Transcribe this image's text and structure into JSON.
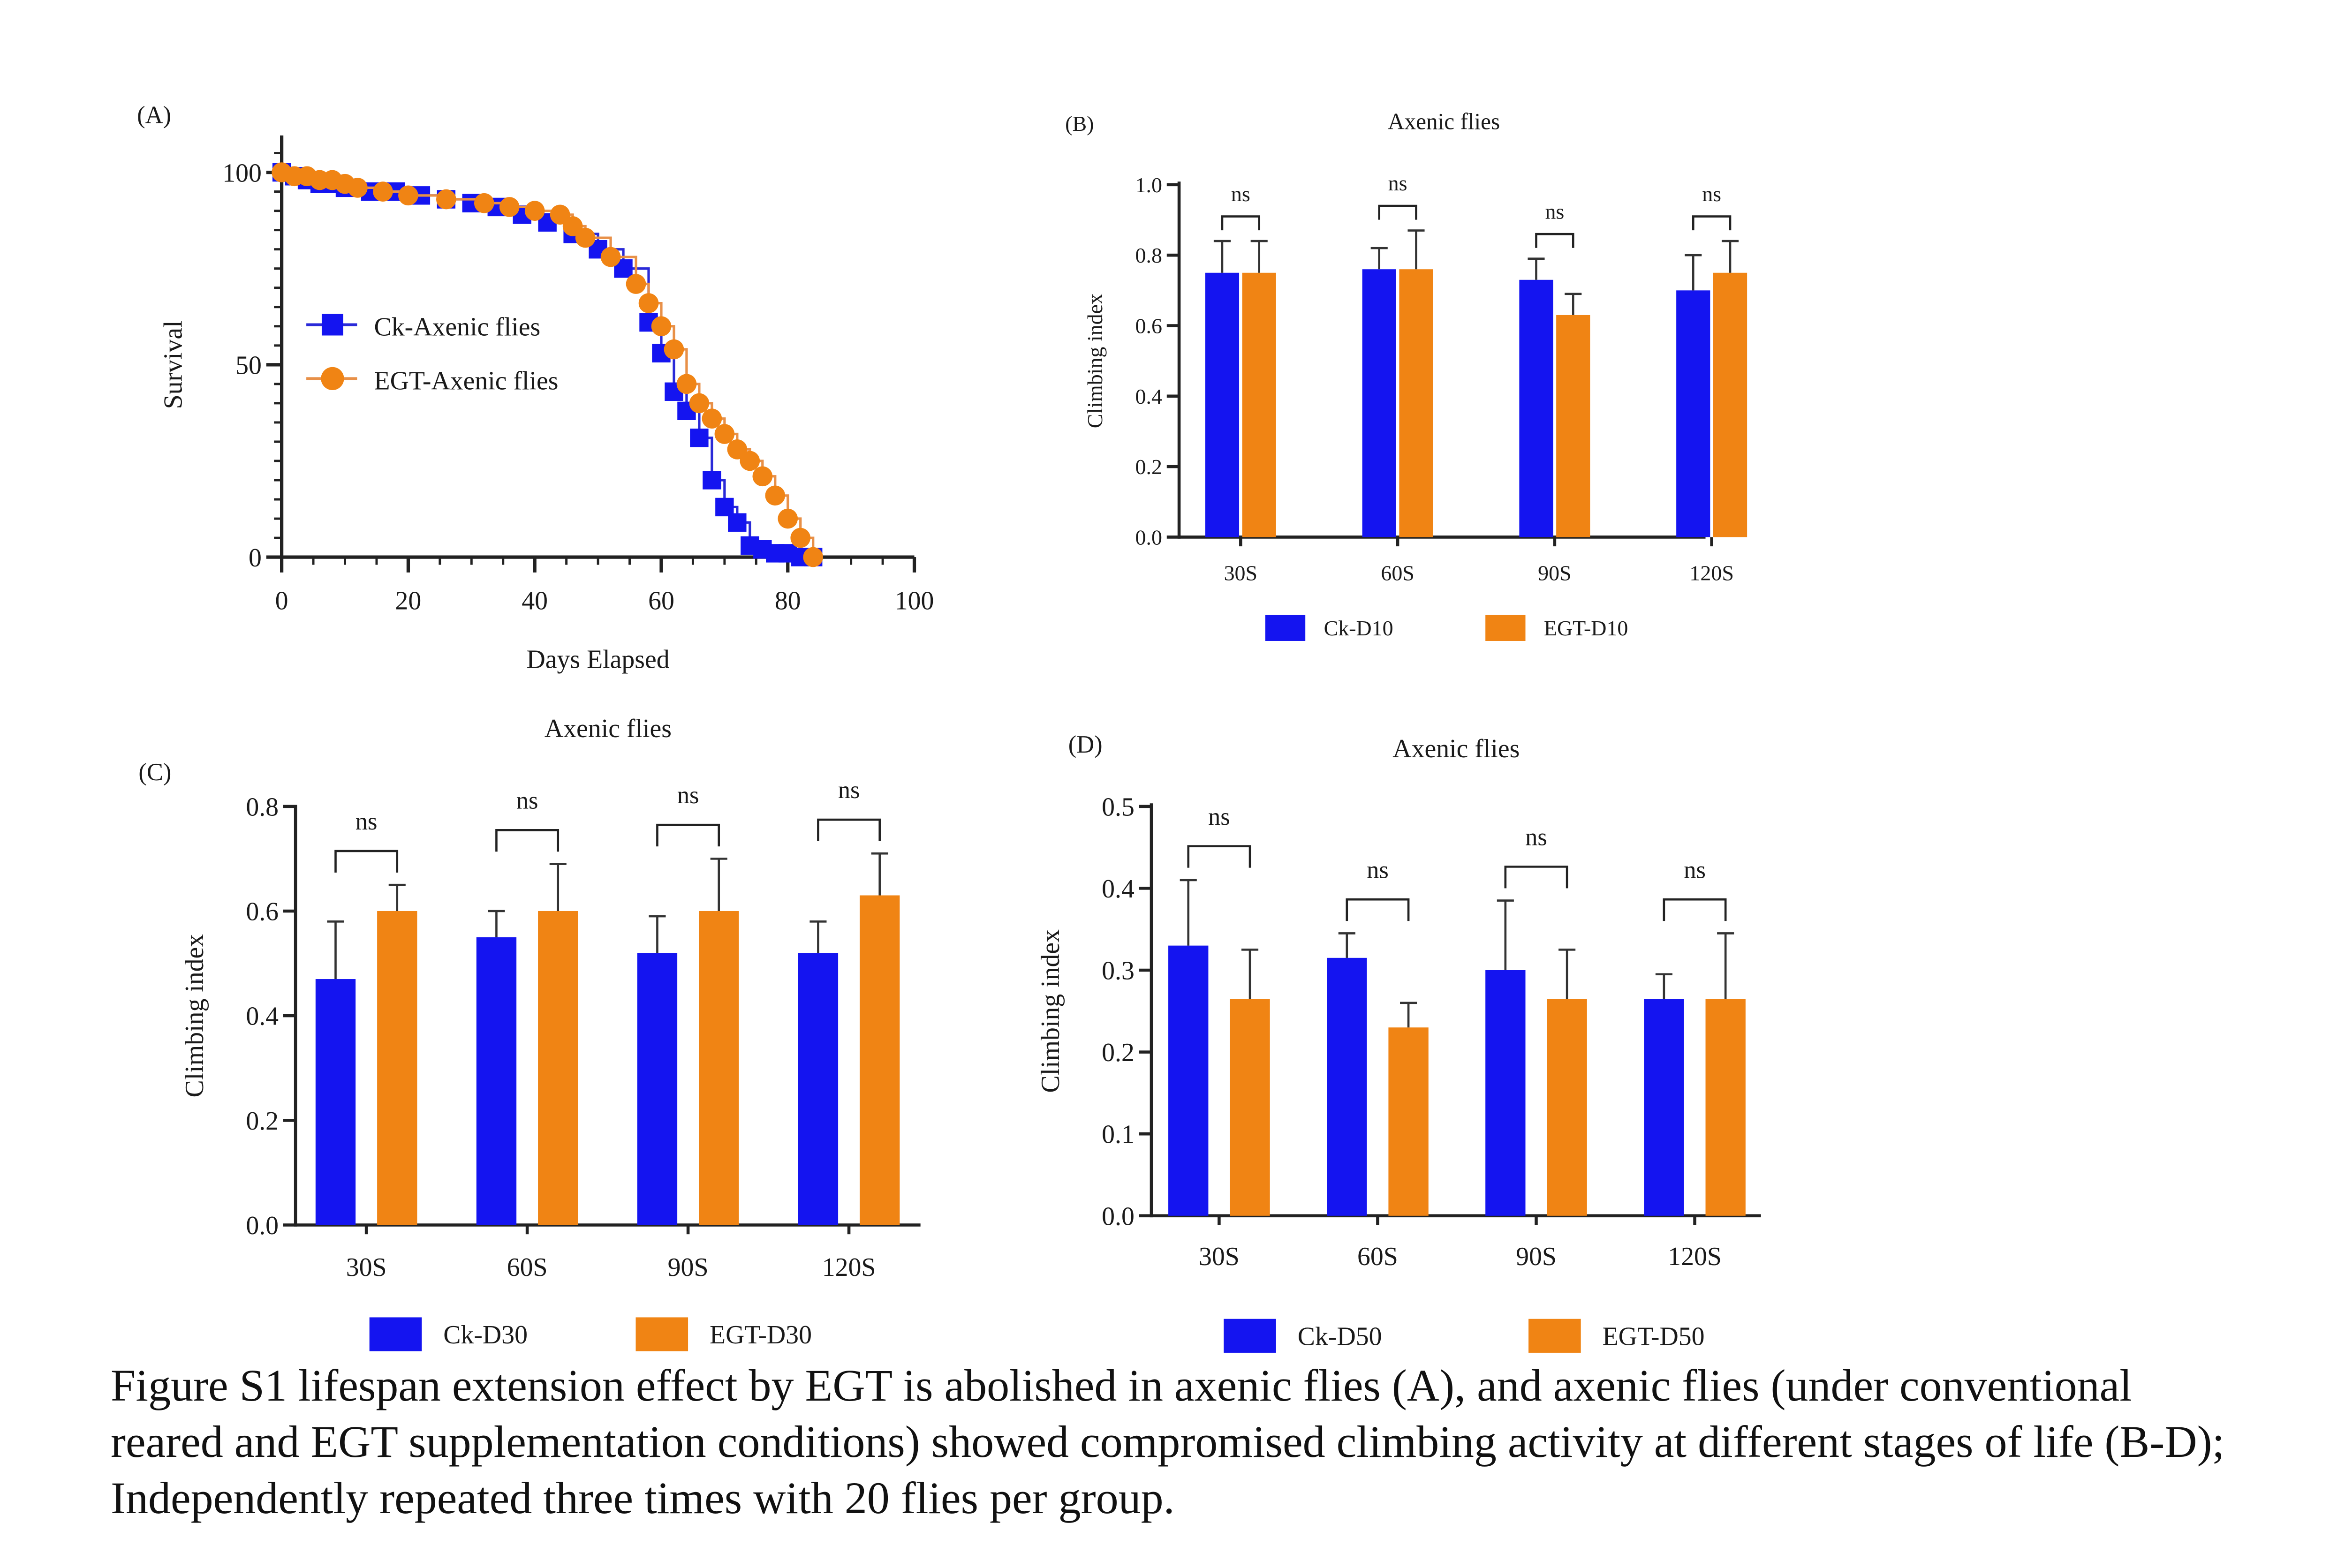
{
  "colors": {
    "ck": "#1414f0",
    "egt": "#f08414",
    "ck_line": "#2a2ad8",
    "egt_line": "#e89048"
  },
  "panels": {
    "A": {
      "label": "(A)",
      "chart_data": {
        "type": "line",
        "title": "",
        "xlabel": "Days Elapsed",
        "ylabel": "Survival",
        "xlim": [
          0,
          100
        ],
        "ylim": [
          0,
          100
        ],
        "xticks": [
          0,
          20,
          40,
          60,
          80,
          100
        ],
        "yticks": [
          0,
          50,
          100
        ],
        "legend_position": "left-middle",
        "series": [
          {
            "name": "Ck-Axenic flies",
            "x": [
              0,
              2,
              4,
              6,
              8,
              10,
              14,
              18,
              22,
              26,
              30,
              34,
              38,
              42,
              46,
              50,
              54,
              58,
              60,
              62,
              64,
              66,
              68,
              70,
              72,
              74,
              76,
              78,
              80,
              82,
              84
            ],
            "y": [
              100,
              99,
              98,
              97,
              97,
              96,
              95,
              95,
              94,
              93,
              92,
              91,
              89,
              87,
              84,
              80,
              75,
              61,
              53,
              43,
              38,
              31,
              20,
              13,
              9,
              3,
              2,
              1,
              1,
              0,
              0
            ]
          },
          {
            "name": "EGT-Axenic flies",
            "x": [
              0,
              2,
              4,
              6,
              8,
              10,
              12,
              16,
              20,
              26,
              32,
              36,
              40,
              44,
              46,
              48,
              52,
              56,
              58,
              60,
              62,
              64,
              66,
              68,
              70,
              72,
              74,
              76,
              78,
              80,
              82,
              84
            ],
            "y": [
              100,
              99,
              99,
              98,
              98,
              97,
              96,
              95,
              94,
              93,
              92,
              91,
              90,
              89,
              86,
              83,
              78,
              71,
              66,
              60,
              54,
              45,
              40,
              36,
              32,
              28,
              25,
              21,
              16,
              10,
              5,
              0
            ]
          }
        ]
      }
    },
    "B": {
      "label": "(B)",
      "chart_data": {
        "type": "bar",
        "title": "Axenic flies",
        "xlabel": "",
        "ylabel": "Climbing index",
        "ylim": [
          0,
          1.0
        ],
        "yticks": [
          "0.0",
          "0.2",
          "0.4",
          "0.6",
          "0.8",
          "1.0"
        ],
        "categories": [
          "30S",
          "60S",
          "90S",
          "120S"
        ],
        "significance": [
          "ns",
          "ns",
          "ns",
          "ns"
        ],
        "legend_position": "bottom",
        "series": [
          {
            "name": "Ck-D10",
            "values": [
              0.75,
              0.76,
              0.73,
              0.7
            ],
            "errors": [
              0.09,
              0.06,
              0.06,
              0.1
            ]
          },
          {
            "name": "EGT-D10",
            "values": [
              0.75,
              0.76,
              0.63,
              0.75
            ],
            "errors": [
              0.09,
              0.11,
              0.06,
              0.09
            ]
          }
        ]
      }
    },
    "C": {
      "label": "(C)",
      "chart_data": {
        "type": "bar",
        "title": "Axenic flies",
        "xlabel": "",
        "ylabel": "Climbing index",
        "ylim": [
          0,
          0.8
        ],
        "yticks": [
          "0.0",
          "0.2",
          "0.4",
          "0.6",
          "0.8"
        ],
        "categories": [
          "30S",
          "60S",
          "90S",
          "120S"
        ],
        "significance": [
          "ns",
          "ns",
          "ns",
          "ns"
        ],
        "legend_position": "bottom",
        "series": [
          {
            "name": "Ck-D30",
            "values": [
              0.47,
              0.55,
              0.52,
              0.52
            ],
            "errors": [
              0.11,
              0.05,
              0.07,
              0.06
            ]
          },
          {
            "name": "EGT-D30",
            "values": [
              0.6,
              0.6,
              0.6,
              0.63
            ],
            "errors": [
              0.05,
              0.09,
              0.1,
              0.08
            ]
          }
        ]
      }
    },
    "D": {
      "label": "(D)",
      "chart_data": {
        "type": "bar",
        "title": "Axenic flies",
        "xlabel": "",
        "ylabel": "Climbing index",
        "ylim": [
          0,
          0.5
        ],
        "yticks": [
          "0.0",
          "0.1",
          "0.2",
          "0.3",
          "0.4",
          "0.5"
        ],
        "categories": [
          "30S",
          "60S",
          "90S",
          "120S"
        ],
        "significance": [
          "ns",
          "ns",
          "ns",
          "ns"
        ],
        "legend_position": "bottom",
        "series": [
          {
            "name": "Ck-D50",
            "values": [
              0.33,
              0.315,
              0.3,
              0.265
            ],
            "errors": [
              0.08,
              0.03,
              0.085,
              0.03
            ]
          },
          {
            "name": "EGT-D50",
            "values": [
              0.265,
              0.23,
              0.265,
              0.265
            ],
            "errors": [
              0.06,
              0.03,
              0.06,
              0.08
            ]
          }
        ]
      }
    }
  },
  "caption": {
    "line1": "Figure S1 lifespan extension effect by EGT is abolished in axenic flies (A), and axenic flies (under conventional",
    "line2": "reared and EGT supplementation conditions) showed compromised climbing activity at different stages of life (B-D);",
    "line3": "Independently repeated three times with 20 flies per group."
  }
}
